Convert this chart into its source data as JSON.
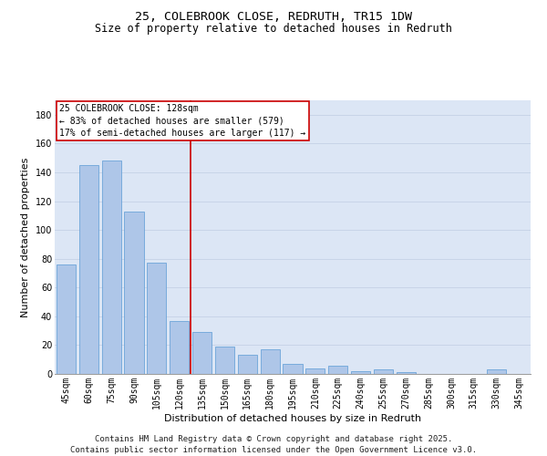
{
  "title": "25, COLEBROOK CLOSE, REDRUTH, TR15 1DW",
  "subtitle": "Size of property relative to detached houses in Redruth",
  "xlabel": "Distribution of detached houses by size in Redruth",
  "ylabel": "Number of detached properties",
  "footer": "Contains HM Land Registry data © Crown copyright and database right 2025.\nContains public sector information licensed under the Open Government Licence v3.0.",
  "categories": [
    "45sqm",
    "60sqm",
    "75sqm",
    "90sqm",
    "105sqm",
    "120sqm",
    "135sqm",
    "150sqm",
    "165sqm",
    "180sqm",
    "195sqm",
    "210sqm",
    "225sqm",
    "240sqm",
    "255sqm",
    "270sqm",
    "285sqm",
    "300sqm",
    "315sqm",
    "330sqm",
    "345sqm"
  ],
  "values": [
    76,
    145,
    148,
    113,
    77,
    37,
    29,
    19,
    13,
    17,
    7,
    4,
    6,
    2,
    3,
    1,
    0,
    0,
    0,
    3,
    0
  ],
  "bar_color": "#aec6e8",
  "bar_edge_color": "#5b9bd5",
  "grid_color": "#c8d4e8",
  "background_color": "#dce6f5",
  "vline_x": 5.5,
  "vline_color": "#cc0000",
  "annotation_text": "25 COLEBROOK CLOSE: 128sqm\n← 83% of detached houses are smaller (579)\n17% of semi-detached houses are larger (117) →",
  "annotation_box_color": "#cc0000",
  "ylim": [
    0,
    190
  ],
  "yticks": [
    0,
    20,
    40,
    60,
    80,
    100,
    120,
    140,
    160,
    180
  ],
  "title_fontsize": 9.5,
  "subtitle_fontsize": 8.5,
  "axis_label_fontsize": 8,
  "tick_fontsize": 7,
  "annotation_fontsize": 7,
  "footer_fontsize": 6.5
}
